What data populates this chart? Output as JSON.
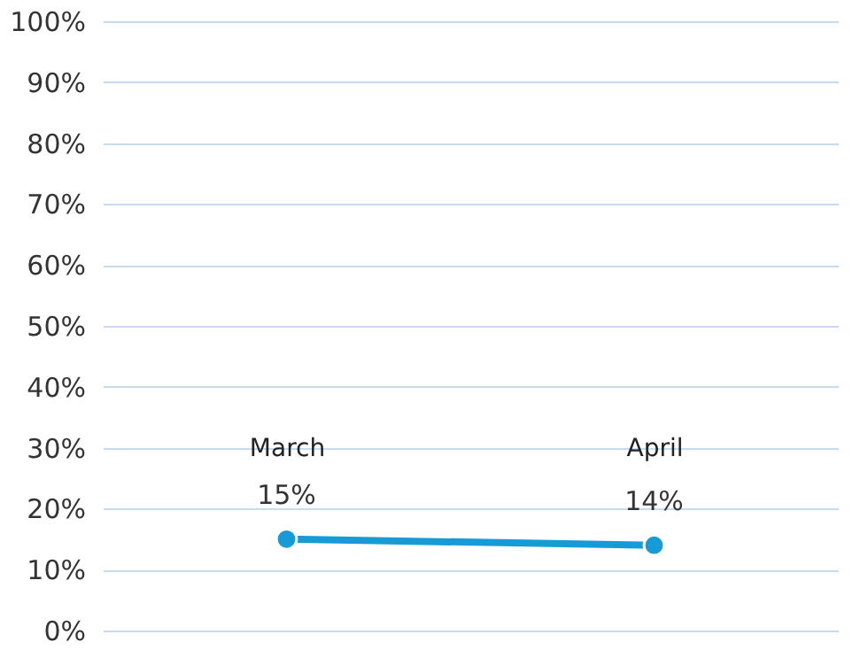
{
  "chart_data": {
    "type": "line",
    "categories": [
      "March",
      "April"
    ],
    "series": [
      {
        "color": "#179bd7",
        "values": [
          15,
          14
        ],
        "value_labels": [
          "15%",
          "14%"
        ]
      }
    ],
    "ylim": [
      0,
      100
    ],
    "yticks": [
      {
        "value": 0,
        "label": "0%"
      },
      {
        "value": 10,
        "label": "10%"
      },
      {
        "value": 20,
        "label": "20%"
      },
      {
        "value": 30,
        "label": "30%"
      },
      {
        "value": 40,
        "label": "40%"
      },
      {
        "value": 50,
        "label": "50%"
      },
      {
        "value": 60,
        "label": "60%"
      },
      {
        "value": 70,
        "label": "70%"
      },
      {
        "value": 80,
        "label": "80%"
      },
      {
        "value": 90,
        "label": "90%"
      },
      {
        "value": 100,
        "label": "100%"
      }
    ],
    "grid": "y",
    "marker": "circle",
    "line_style": "solid"
  }
}
